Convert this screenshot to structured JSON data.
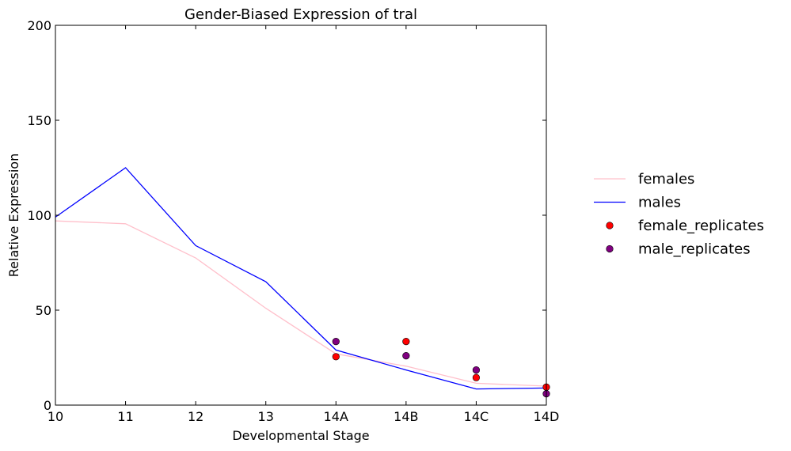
{
  "chart_data": {
    "type": "line",
    "title": "Gender-Biased Expression of tral",
    "xlabel": "Developmental Stage",
    "ylabel": "Relative Expression",
    "categories": [
      "10",
      "11",
      "12",
      "13",
      "14A",
      "14B",
      "14C",
      "14D"
    ],
    "ylim": [
      0,
      200
    ],
    "yticks": [
      0,
      50,
      100,
      150,
      200
    ],
    "grid": false,
    "legend_position": "outside-right",
    "series": [
      {
        "name": "females",
        "kind": "line",
        "color": "#ffc0cb",
        "values": [
          97,
          95.5,
          77.5,
          51,
          27,
          20.5,
          11.5,
          10
        ]
      },
      {
        "name": "males",
        "kind": "line",
        "color": "#0000ff",
        "values": [
          99,
          125,
          84,
          65,
          29,
          18.5,
          8.5,
          9
        ]
      },
      {
        "name": "female_replicates",
        "kind": "scatter",
        "color": "#ff0000",
        "points": [
          [
            "14A",
            25.5
          ],
          [
            "14B",
            33.5
          ],
          [
            "14C",
            14.5
          ],
          [
            "14D",
            9.5
          ]
        ]
      },
      {
        "name": "male_replicates",
        "kind": "scatter",
        "color": "#800080",
        "points": [
          [
            "14A",
            33.5
          ],
          [
            "14B",
            26
          ],
          [
            "14C",
            18.5
          ],
          [
            "14D",
            6
          ]
        ]
      }
    ]
  }
}
